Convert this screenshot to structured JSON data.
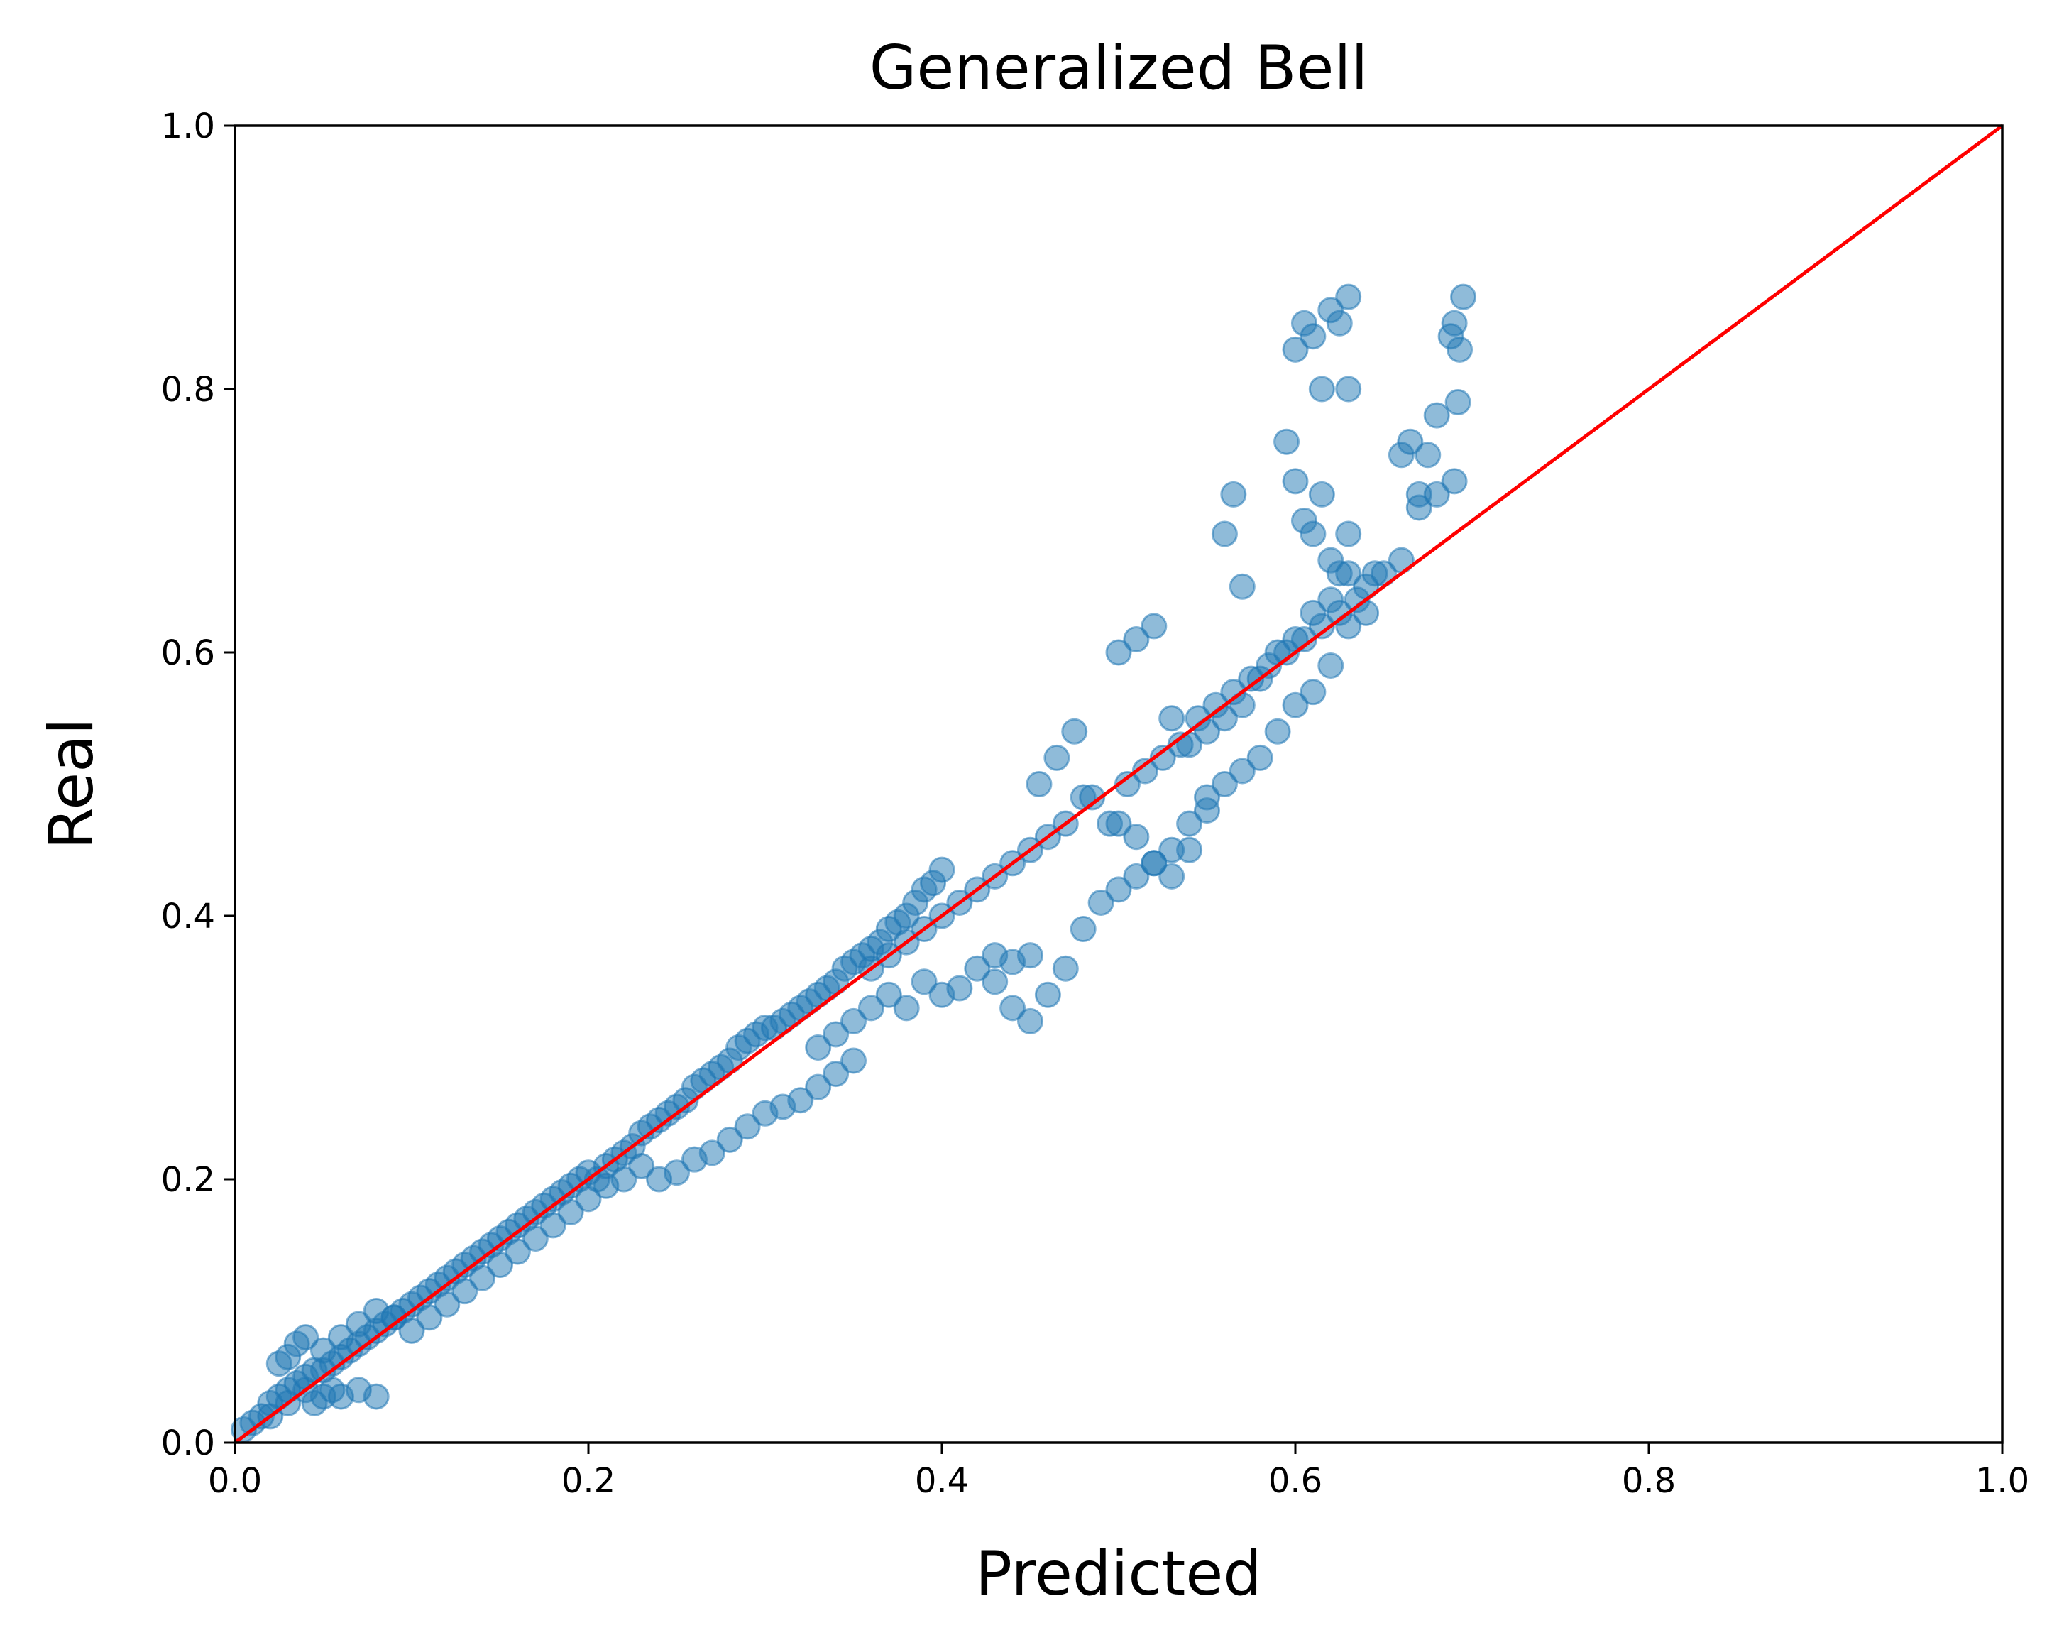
{
  "chart_data": {
    "type": "scatter",
    "title": "Generalized Bell",
    "xlabel": "Predicted",
    "ylabel": "Real",
    "xlim": [
      0.0,
      1.0
    ],
    "ylim": [
      0.0,
      1.0
    ],
    "xticks": [
      "0.0",
      "0.2",
      "0.4",
      "0.6",
      "0.8",
      "1.0"
    ],
    "yticks": [
      "0.0",
      "0.2",
      "0.4",
      "0.6",
      "0.8",
      "1.0"
    ],
    "grid": false,
    "legend": "none",
    "colors": {
      "points": "#1f77b4",
      "reference_line": "#ff0000"
    },
    "reference_line": {
      "x": [
        0.0,
        1.0
      ],
      "y": [
        0.0,
        1.0
      ]
    },
    "series": [
      {
        "x": [
          0.005,
          0.01,
          0.015,
          0.02,
          0.02,
          0.025,
          0.03,
          0.03,
          0.035,
          0.04,
          0.04,
          0.045,
          0.05,
          0.055,
          0.06,
          0.065,
          0.07,
          0.075,
          0.08,
          0.085,
          0.09,
          0.05,
          0.06,
          0.07,
          0.08,
          0.03,
          0.035,
          0.04,
          0.025,
          0.045,
          0.05,
          0.055,
          0.06,
          0.07,
          0.08,
          0.09,
          0.095,
          0.1,
          0.105,
          0.11,
          0.115,
          0.12,
          0.125,
          0.13,
          0.135,
          0.14,
          0.145,
          0.15,
          0.155,
          0.16,
          0.165,
          0.17,
          0.175,
          0.18,
          0.185,
          0.19,
          0.195,
          0.2,
          0.1,
          0.11,
          0.12,
          0.13,
          0.14,
          0.15,
          0.16,
          0.17,
          0.18,
          0.19,
          0.2,
          0.21,
          0.22,
          0.23,
          0.205,
          0.21,
          0.215,
          0.22,
          0.225,
          0.23,
          0.235,
          0.24,
          0.245,
          0.25,
          0.255,
          0.26,
          0.265,
          0.27,
          0.275,
          0.28,
          0.285,
          0.29,
          0.295,
          0.3,
          0.24,
          0.25,
          0.26,
          0.27,
          0.28,
          0.29,
          0.3,
          0.31,
          0.32,
          0.33,
          0.34,
          0.35,
          0.305,
          0.31,
          0.315,
          0.32,
          0.325,
          0.33,
          0.335,
          0.34,
          0.345,
          0.35,
          0.355,
          0.36,
          0.365,
          0.37,
          0.375,
          0.38,
          0.385,
          0.39,
          0.395,
          0.4,
          0.33,
          0.34,
          0.35,
          0.36,
          0.37,
          0.38,
          0.39,
          0.4,
          0.41,
          0.42,
          0.43,
          0.44,
          0.45,
          0.36,
          0.37,
          0.38,
          0.39,
          0.4,
          0.41,
          0.42,
          0.43,
          0.44,
          0.45,
          0.46,
          0.47,
          0.48,
          0.43,
          0.44,
          0.45,
          0.46,
          0.47,
          0.48,
          0.49,
          0.5,
          0.51,
          0.52,
          0.53,
          0.54,
          0.55,
          0.455,
          0.465,
          0.475,
          0.485,
          0.495,
          0.505,
          0.515,
          0.525,
          0.535,
          0.545,
          0.555,
          0.565,
          0.575,
          0.585,
          0.595,
          0.605,
          0.615,
          0.625,
          0.635,
          0.5,
          0.51,
          0.52,
          0.53,
          0.54,
          0.55,
          0.56,
          0.57,
          0.58,
          0.59,
          0.6,
          0.61,
          0.62,
          0.63,
          0.64,
          0.65,
          0.66,
          0.67,
          0.68,
          0.69,
          0.5,
          0.51,
          0.52,
          0.53,
          0.54,
          0.55,
          0.56,
          0.57,
          0.58,
          0.59,
          0.6,
          0.61,
          0.62,
          0.63,
          0.64,
          0.645,
          0.56,
          0.565,
          0.57,
          0.595,
          0.6,
          0.605,
          0.61,
          0.615,
          0.62,
          0.625,
          0.63,
          0.66,
          0.665,
          0.67,
          0.675,
          0.68,
          0.6,
          0.605,
          0.61,
          0.615,
          0.62,
          0.625,
          0.63,
          0.688,
          0.69,
          0.693,
          0.695,
          0.63,
          0.692
        ],
        "y": [
          0.01,
          0.015,
          0.02,
          0.02,
          0.03,
          0.035,
          0.03,
          0.04,
          0.045,
          0.04,
          0.05,
          0.055,
          0.055,
          0.06,
          0.065,
          0.07,
          0.075,
          0.08,
          0.085,
          0.09,
          0.095,
          0.07,
          0.08,
          0.09,
          0.1,
          0.065,
          0.075,
          0.08,
          0.06,
          0.03,
          0.035,
          0.04,
          0.035,
          0.04,
          0.035,
          0.095,
          0.1,
          0.105,
          0.11,
          0.115,
          0.12,
          0.125,
          0.13,
          0.135,
          0.14,
          0.145,
          0.15,
          0.155,
          0.16,
          0.165,
          0.17,
          0.175,
          0.18,
          0.185,
          0.19,
          0.195,
          0.2,
          0.205,
          0.085,
          0.095,
          0.105,
          0.115,
          0.125,
          0.135,
          0.145,
          0.155,
          0.165,
          0.175,
          0.185,
          0.195,
          0.2,
          0.21,
          0.2,
          0.21,
          0.215,
          0.22,
          0.225,
          0.235,
          0.24,
          0.245,
          0.25,
          0.255,
          0.26,
          0.27,
          0.275,
          0.28,
          0.285,
          0.29,
          0.3,
          0.305,
          0.31,
          0.315,
          0.2,
          0.205,
          0.215,
          0.22,
          0.23,
          0.24,
          0.25,
          0.255,
          0.26,
          0.27,
          0.28,
          0.29,
          0.315,
          0.32,
          0.325,
          0.33,
          0.335,
          0.34,
          0.345,
          0.35,
          0.36,
          0.365,
          0.37,
          0.375,
          0.38,
          0.39,
          0.395,
          0.4,
          0.41,
          0.42,
          0.425,
          0.435,
          0.3,
          0.31,
          0.32,
          0.33,
          0.34,
          0.33,
          0.35,
          0.34,
          0.345,
          0.36,
          0.35,
          0.365,
          0.37,
          0.36,
          0.37,
          0.38,
          0.39,
          0.4,
          0.41,
          0.42,
          0.43,
          0.44,
          0.45,
          0.46,
          0.47,
          0.49,
          0.37,
          0.33,
          0.32,
          0.34,
          0.36,
          0.39,
          0.41,
          0.42,
          0.43,
          0.44,
          0.45,
          0.47,
          0.48,
          0.5,
          0.52,
          0.54,
          0.49,
          0.47,
          0.5,
          0.51,
          0.52,
          0.53,
          0.55,
          0.56,
          0.57,
          0.58,
          0.59,
          0.6,
          0.61,
          0.62,
          0.63,
          0.64,
          0.6,
          0.61,
          0.62,
          0.55,
          0.53,
          0.54,
          0.55,
          0.56,
          0.58,
          0.6,
          0.61,
          0.63,
          0.64,
          0.66,
          0.65,
          0.66,
          0.67,
          0.71,
          0.72,
          0.73,
          0.47,
          0.46,
          0.44,
          0.43,
          0.45,
          0.49,
          0.5,
          0.51,
          0.52,
          0.54,
          0.56,
          0.57,
          0.59,
          0.62,
          0.63,
          0.66,
          0.69,
          0.72,
          0.65,
          0.76,
          0.73,
          0.7,
          0.69,
          0.72,
          0.67,
          0.66,
          0.69,
          0.75,
          0.76,
          0.72,
          0.75,
          0.78,
          0.83,
          0.85,
          0.84,
          0.8,
          0.86,
          0.85,
          0.87,
          0.84,
          0.85,
          0.83,
          0.87,
          0.8,
          0.79
        ]
      }
    ]
  }
}
